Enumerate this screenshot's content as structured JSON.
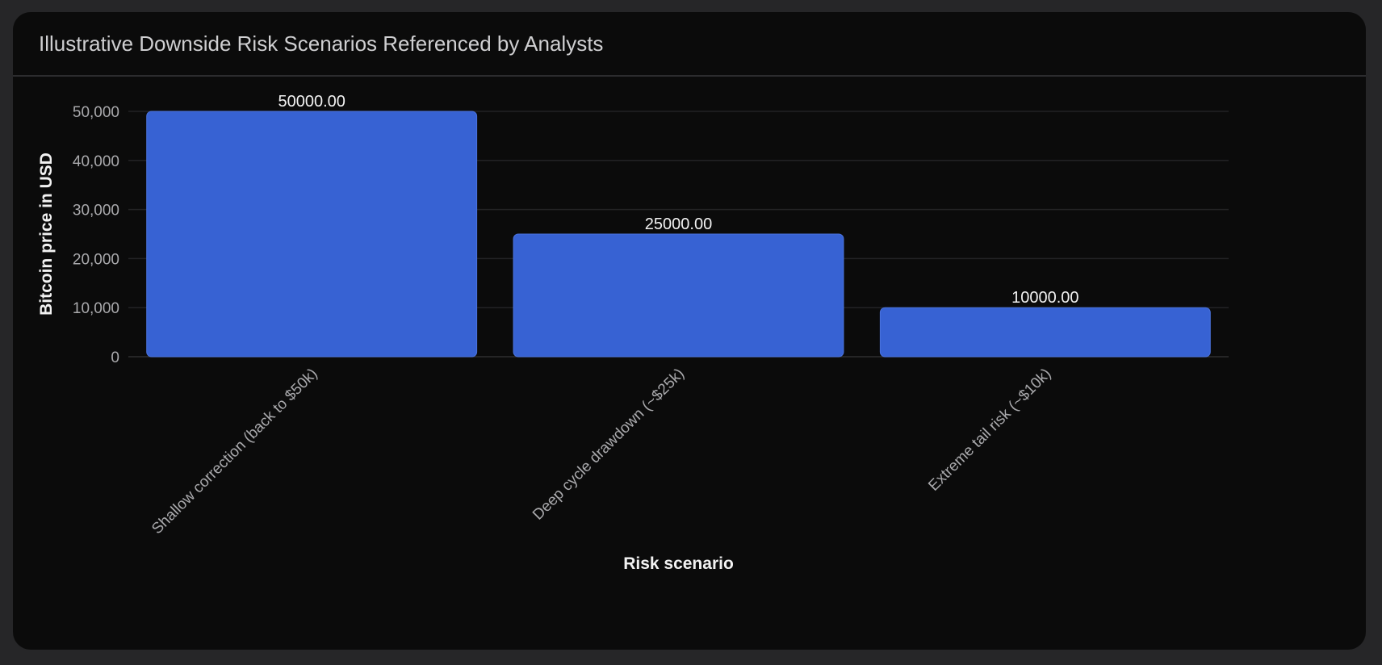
{
  "card": {
    "title": "Illustrative Downside Risk Scenarios Referenced by Analysts"
  },
  "colors": {
    "bar": "#3762d3",
    "grid": "#232325",
    "axis_text": "#a9a9ac",
    "label_text": "#f2f2f2",
    "title_text": "#cfcfd1"
  },
  "chart_data": {
    "type": "bar",
    "title": "",
    "xlabel": "Risk scenario",
    "ylabel": "Bitcoin price in USD",
    "categories": [
      "Shallow correction (back to $50k)",
      "Deep cycle drawdown (~$25k)",
      "Extreme tail risk (~$10k)"
    ],
    "values": [
      50000,
      25000,
      10000
    ],
    "data_labels": [
      "50000.00",
      "25000.00",
      "10000.00"
    ],
    "ylim": [
      0,
      50000
    ],
    "yticks": [
      0,
      10000,
      20000,
      30000,
      40000,
      50000
    ],
    "ytick_labels": [
      "0",
      "10,000",
      "20,000",
      "30,000",
      "40,000",
      "50,000"
    ],
    "grid": true,
    "legend": "none"
  }
}
